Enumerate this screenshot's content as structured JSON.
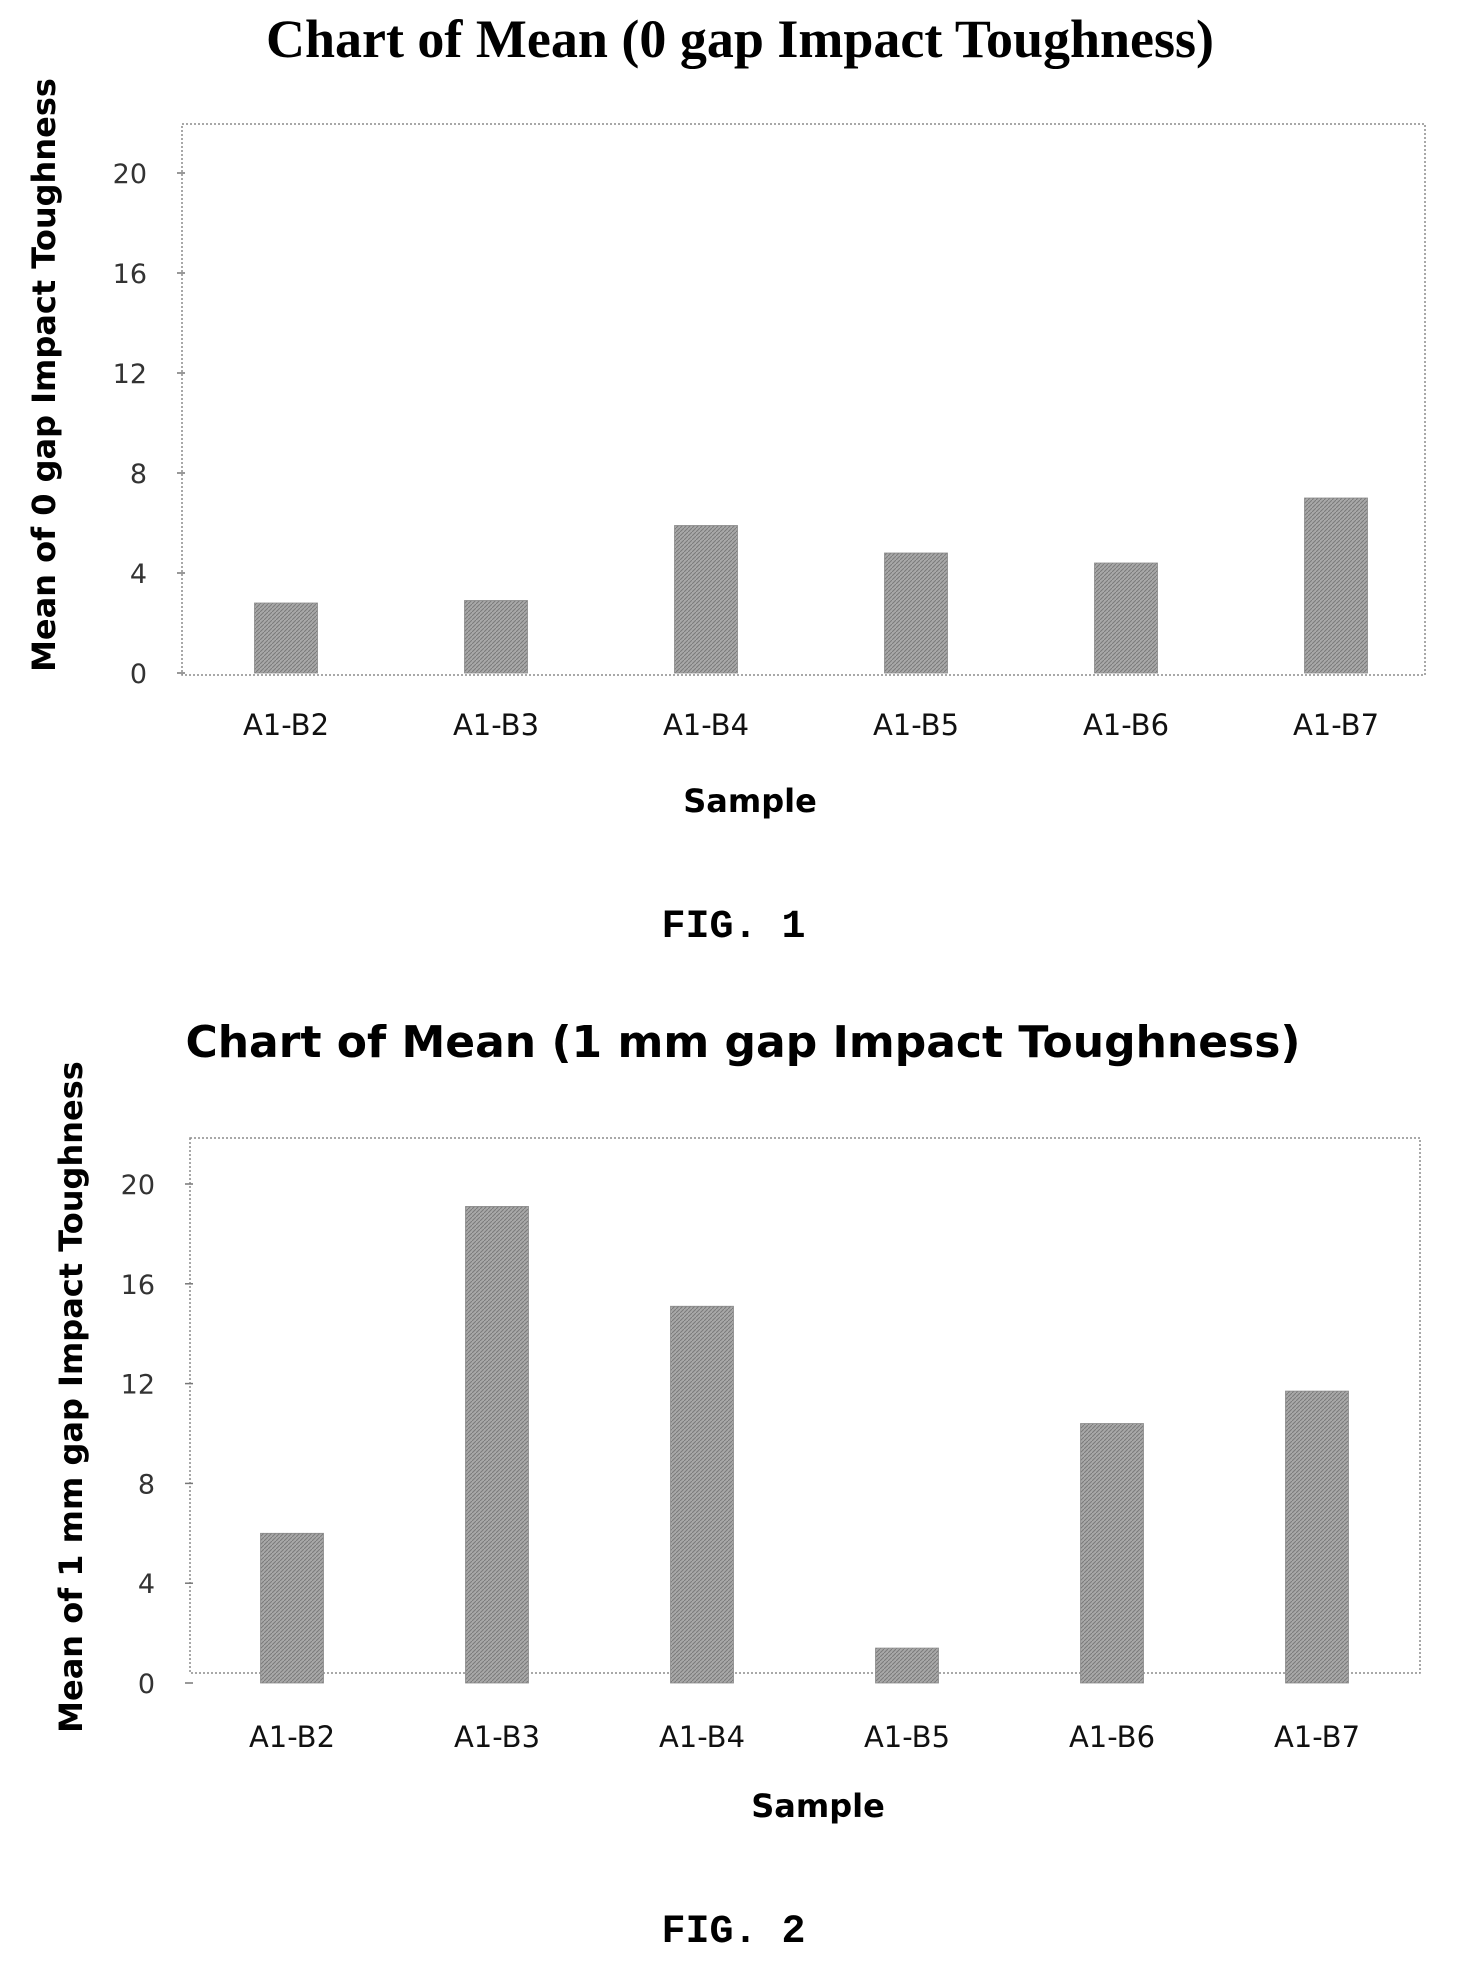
{
  "chart_data": [
    {
      "type": "bar",
      "title": "Chart of Mean (0 gap Impact Toughness)",
      "xlabel": "Sample",
      "ylabel": "Mean of 0 gap Impact Toughness",
      "categories": [
        "A1-B2",
        "A1-B3",
        "A1-B4",
        "A1-B5",
        "A1-B6",
        "A1-B7"
      ],
      "values": [
        2.8,
        2.9,
        5.9,
        4.8,
        4.4,
        7.0
      ],
      "ylim": [
        0,
        22
      ],
      "yticks": [
        0,
        4,
        8,
        12,
        16,
        20
      ],
      "caption": "FIG. 1",
      "grid": false,
      "bar_color": "#9a9a9a"
    },
    {
      "type": "bar",
      "title": "Chart of Mean (1 mm gap Impact Toughness)",
      "xlabel": "Sample",
      "ylabel": "Mean of 1 mm gap Impact Toughness",
      "categories": [
        "A1-B2",
        "A1-B3",
        "A1-B4",
        "A1-B5",
        "A1-B6",
        "A1-B7"
      ],
      "values": [
        6.0,
        19.1,
        15.1,
        1.4,
        10.4,
        11.7
      ],
      "ylim": [
        0,
        22
      ],
      "yticks": [
        0,
        4,
        8,
        12,
        16,
        20
      ],
      "caption": "FIG. 2",
      "grid": false,
      "bar_color": "#9a9a9a"
    }
  ]
}
